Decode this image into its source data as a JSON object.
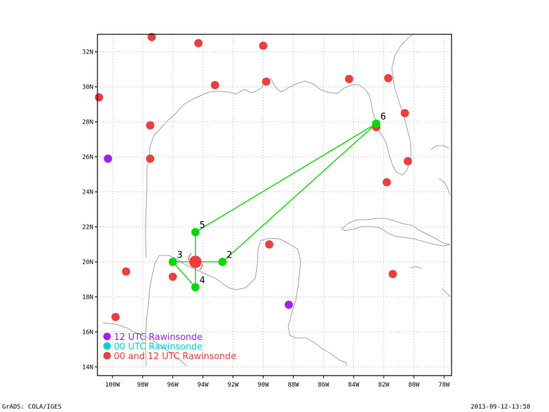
{
  "map": {
    "lon_range": [
      -101,
      -77.5
    ],
    "lat_range": [
      13.5,
      33
    ],
    "lon_ticks": [
      -100,
      -98,
      -96,
      -94,
      -92,
      -90,
      -88,
      -86,
      -84,
      -82,
      -80,
      -78
    ],
    "lat_ticks": [
      14,
      16,
      18,
      20,
      22,
      24,
      26,
      28,
      30,
      32
    ],
    "lon_tick_labels": [
      "100W",
      "98W",
      "96W",
      "94W",
      "92W",
      "90W",
      "88W",
      "86W",
      "84W",
      "82W",
      "80W",
      "78W"
    ],
    "lat_tick_labels": [
      "14N",
      "16N",
      "18N",
      "20N",
      "22N",
      "24N",
      "26N",
      "28N",
      "30N",
      "32N"
    ],
    "grid": "dotted",
    "coastline_color": "#a0a0a0"
  },
  "colors": {
    "rawinsonde_12utc": "#a020f0",
    "rawinsonde_00utc": "#00d2d2",
    "rawinsonde_both": "#f03c3c",
    "flight_track": "#00dc00"
  },
  "stations_12utc": [
    {
      "lon": -100.3,
      "lat": 25.9
    },
    {
      "lon": -88.3,
      "lat": 17.55
    }
  ],
  "stations_both": [
    {
      "lon": -100.9,
      "lat": 29.4
    },
    {
      "lon": -97.4,
      "lat": 32.85
    },
    {
      "lon": -94.3,
      "lat": 32.5
    },
    {
      "lon": -90.0,
      "lat": 32.35
    },
    {
      "lon": -93.2,
      "lat": 30.1
    },
    {
      "lon": -89.8,
      "lat": 30.3
    },
    {
      "lon": -84.3,
      "lat": 30.45
    },
    {
      "lon": -81.7,
      "lat": 30.5
    },
    {
      "lon": -80.6,
      "lat": 28.5
    },
    {
      "lon": -97.5,
      "lat": 27.8
    },
    {
      "lon": -97.5,
      "lat": 25.9
    },
    {
      "lon": -82.5,
      "lat": 27.7
    },
    {
      "lon": -80.4,
      "lat": 25.75
    },
    {
      "lon": -81.8,
      "lat": 24.55
    },
    {
      "lon": -89.6,
      "lat": 21.0
    },
    {
      "lon": -99.1,
      "lat": 19.45
    },
    {
      "lon": -96.0,
      "lat": 19.15
    },
    {
      "lon": -81.4,
      "lat": 19.3
    },
    {
      "lon": -99.8,
      "lat": 16.85
    }
  ],
  "storm_center": {
    "lon": -94.5,
    "lat": 20.0
  },
  "flight_points": [
    {
      "label": "2",
      "lon": -92.7,
      "lat": 20.0
    },
    {
      "label": "3",
      "lon": -96.0,
      "lat": 20.0
    },
    {
      "label": "4",
      "lon": -94.5,
      "lat": 18.55
    },
    {
      "label": "5",
      "lon": -94.5,
      "lat": 21.7
    },
    {
      "label": "6",
      "lon": -82.5,
      "lat": 27.9
    }
  ],
  "flight_track": [
    {
      "lon": -82.5,
      "lat": 27.9
    },
    {
      "lon": -92.7,
      "lat": 20.0
    },
    {
      "lon": -94.5,
      "lat": 20.0
    },
    {
      "lon": -96.0,
      "lat": 20.0
    },
    {
      "lon": -94.5,
      "lat": 18.55
    },
    {
      "lon": -94.5,
      "lat": 21.7
    },
    {
      "lon": -82.5,
      "lat": 27.9
    }
  ],
  "legend": {
    "items": [
      {
        "label": "12 UTC Rawinsonde",
        "color": "#a020f0"
      },
      {
        "label": "00 UTC Rawinsonde",
        "color": "#00d2d2"
      },
      {
        "label": "00 and 12 UTC Rawinsonde",
        "color": "#f03c3c"
      }
    ]
  },
  "footer": {
    "left": "GrADS: COLA/IGES",
    "right": "2013-09-12-13:58"
  }
}
